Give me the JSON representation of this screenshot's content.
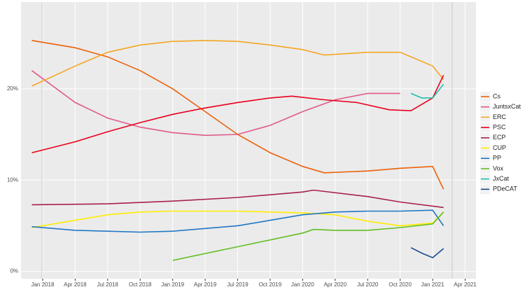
{
  "chart_data": {
    "type": "line",
    "xlim": [
      "2017-11",
      "2021-05"
    ],
    "xticks": [
      {
        "value": "2018-01",
        "label": "Jan 2018"
      },
      {
        "value": "2018-04",
        "label": "Apr 2018"
      },
      {
        "value": "2018-07",
        "label": "Jul 2018"
      },
      {
        "value": "2018-10",
        "label": "Oct 2018"
      },
      {
        "value": "2019-01",
        "label": "Jan 2019"
      },
      {
        "value": "2019-04",
        "label": "Apr 2019"
      },
      {
        "value": "2019-07",
        "label": "Jul 2019"
      },
      {
        "value": "2019-10",
        "label": "Oct 2019"
      },
      {
        "value": "2020-01",
        "label": "Jan 2020"
      },
      {
        "value": "2020-04",
        "label": "Apr 2020"
      },
      {
        "value": "2020-07",
        "label": "Jul 2020"
      },
      {
        "value": "2020-10",
        "label": "Oct 2020"
      },
      {
        "value": "2021-01",
        "label": "Jan 2021"
      },
      {
        "value": "2021-04",
        "label": "Apr 2021"
      }
    ],
    "ylim": [
      -0.8,
      29.5
    ],
    "yticks": [
      {
        "value": 0,
        "label": "0%"
      },
      {
        "value": 10,
        "label": "10%"
      },
      {
        "value": 20,
        "label": "20%"
      }
    ],
    "grid": true,
    "legend": "right",
    "series": [
      {
        "name": "Cs",
        "color": "#eb6109",
        "x": [
          "2017-12",
          "2018-04",
          "2018-07",
          "2018-10",
          "2019-01",
          "2019-04",
          "2019-07",
          "2019-10",
          "2020-01",
          "2020-03",
          "2020-07",
          "2020-10",
          "2021-01",
          "2021-02"
        ],
        "values": [
          25.3,
          24.5,
          23.5,
          22,
          20,
          17.5,
          15,
          13,
          11.5,
          10.8,
          11,
          11.3,
          11.5,
          9
        ]
      },
      {
        "name": "JuntsxCat",
        "color": "#e05a8a",
        "x": [
          "2017-12",
          "2018-04",
          "2018-07",
          "2018-10",
          "2019-01",
          "2019-04",
          "2019-07",
          "2019-10",
          "2020-01",
          "2020-04",
          "2020-07",
          "2020-10"
        ],
        "values": [
          22,
          18.5,
          16.8,
          15.8,
          15.2,
          14.9,
          15,
          16,
          17.5,
          18.8,
          19.5,
          19.5
        ]
      },
      {
        "name": "ERC",
        "color": "#f5a623",
        "x": [
          "2017-12",
          "2018-04",
          "2018-07",
          "2018-10",
          "2019-01",
          "2019-04",
          "2019-07",
          "2019-10",
          "2020-01",
          "2020-03",
          "2020-07",
          "2020-10",
          "2021-01",
          "2021-02"
        ],
        "values": [
          20.3,
          22.5,
          24,
          24.8,
          25.2,
          25.3,
          25.2,
          24.8,
          24.3,
          23.7,
          24,
          24,
          22.5,
          21
        ]
      },
      {
        "name": "PSC",
        "color": "#e8001c",
        "x": [
          "2017-12",
          "2018-04",
          "2018-07",
          "2018-10",
          "2019-01",
          "2019-04",
          "2019-07",
          "2019-10",
          "2019-12",
          "2020-03",
          "2020-06",
          "2020-09",
          "2020-11",
          "2021-01",
          "2021-02"
        ],
        "values": [
          13,
          14.2,
          15.3,
          16.3,
          17.2,
          17.9,
          18.5,
          19,
          19.2,
          18.8,
          18.5,
          17.7,
          17.6,
          19,
          21.5
        ]
      },
      {
        "name": "ECP",
        "color": "#a8204b",
        "x": [
          "2017-12",
          "2018-07",
          "2019-01",
          "2019-07",
          "2020-01",
          "2020-02",
          "2020-07",
          "2020-10",
          "2021-02"
        ],
        "values": [
          7.3,
          7.4,
          7.7,
          8.1,
          8.7,
          8.9,
          8.2,
          7.6,
          7
        ]
      },
      {
        "name": "CUP",
        "color": "#ffed00",
        "x": [
          "2017-12",
          "2018-04",
          "2018-07",
          "2018-10",
          "2019-01",
          "2019-07",
          "2020-01",
          "2020-04",
          "2020-07",
          "2020-10",
          "2021-01",
          "2021-02"
        ],
        "values": [
          4.8,
          5.6,
          6.2,
          6.5,
          6.6,
          6.6,
          6.4,
          6.2,
          5.5,
          5,
          5.3,
          6.5
        ]
      },
      {
        "name": "PP",
        "color": "#1f77c4",
        "x": [
          "2017-12",
          "2018-04",
          "2018-10",
          "2019-01",
          "2019-07",
          "2019-10",
          "2020-01",
          "2020-04",
          "2020-07",
          "2020-10",
          "2021-01",
          "2021-02"
        ],
        "values": [
          4.9,
          4.5,
          4.3,
          4.4,
          5,
          5.6,
          6.2,
          6.5,
          6.6,
          6.6,
          6.7,
          5
        ]
      },
      {
        "name": "Vox",
        "color": "#63be21",
        "x": [
          "2019-01",
          "2019-07",
          "2020-01",
          "2020-02",
          "2020-04",
          "2020-07",
          "2020-10",
          "2021-01",
          "2021-02"
        ],
        "values": [
          1.2,
          2.7,
          4.2,
          4.6,
          4.5,
          4.5,
          4.8,
          5.2,
          6.5
        ]
      },
      {
        "name": "JxCat",
        "color": "#20c0b0",
        "x": [
          "2020-11",
          "2020-12",
          "2021-01",
          "2021-02"
        ],
        "values": [
          19.5,
          19,
          19,
          20.5
        ]
      },
      {
        "name": "PDeCAT",
        "color": "#1a4b8c",
        "x": [
          "2020-11",
          "2020-12",
          "2021-01",
          "2021-02"
        ],
        "values": [
          2.6,
          2,
          1.5,
          2.5
        ]
      }
    ]
  }
}
